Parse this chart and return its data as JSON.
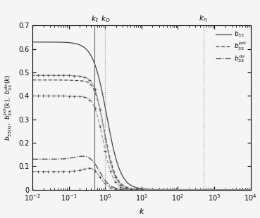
{
  "xlabel": "$k$",
  "xlim": [
    0.01,
    10000
  ],
  "ylim": [
    0,
    0.7
  ],
  "k_ell": 0.5,
  "k_O": 1.0,
  "k_eta": 500.0,
  "yticks": [
    0,
    0.1,
    0.2,
    0.3,
    0.4,
    0.5,
    0.6,
    0.7
  ],
  "color_s2": "#444444",
  "color_s4": "#999999",
  "color_marker": "#555555",
  "bg_color": "#f5f5f5"
}
